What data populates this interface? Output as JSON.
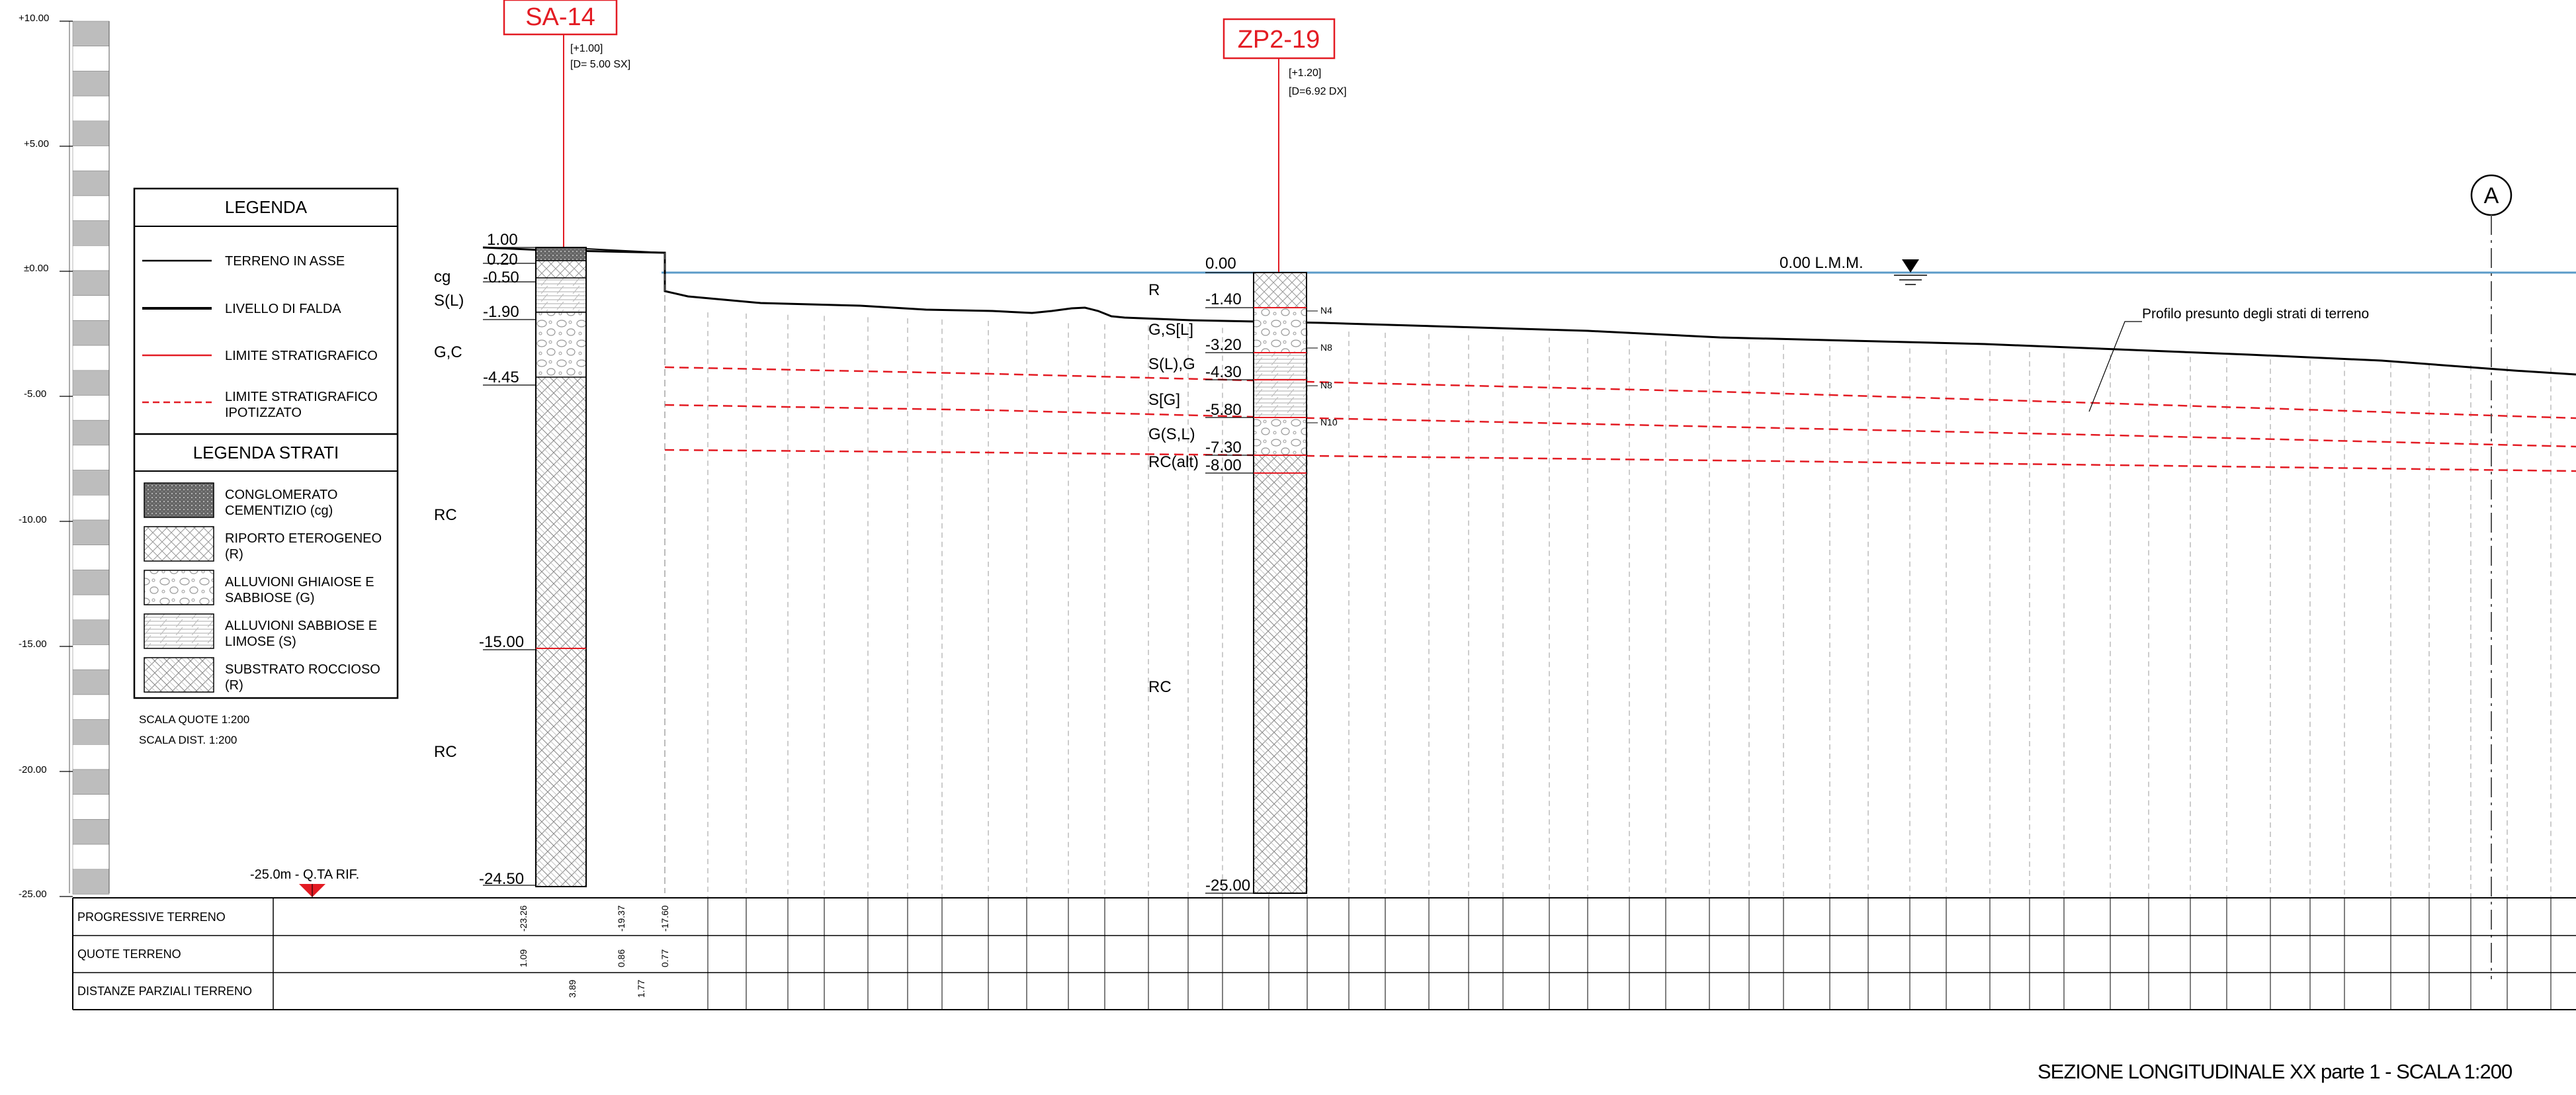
{
  "scale_ruler": {
    "labels": [
      "+10.00",
      "+5.00",
      "±0.00",
      "-5.00",
      "-10.00",
      "-15.00",
      "-20.00",
      "-25.00"
    ]
  },
  "legend": {
    "title": "LEGENDA",
    "items": [
      {
        "label": "TERRENO IN ASSE"
      },
      {
        "label": "LIVELLO DI FALDA"
      },
      {
        "label": "LIMITE STRATIGRAFICO"
      },
      {
        "label": "LIMITE STRATIGRAFICO",
        "label2": "IPOTIZZATO"
      }
    ],
    "strata_title": "LEGENDA STRATI",
    "strata": [
      {
        "label": "CONGLOMERATO",
        "label2": "CEMENTIZIO (cg)"
      },
      {
        "label": "RIPORTO ETEROGENEO",
        "label2": "(R)"
      },
      {
        "label": "ALLUVIONI GHIAIOSE E",
        "label2": "SABBIOSE (G)"
      },
      {
        "label": "ALLUVIONI SABBIOSE E",
        "label2": "LIMOSE (S)"
      },
      {
        "label": "SUBSTRATO ROCCIOSO",
        "label2": "(R)"
      }
    ],
    "scale_quote": "SCALA QUOTE 1:200",
    "scale_dist": "SCALA DIST. 1:200"
  },
  "reference": {
    "label": "-25.0m - Q.TA RIF."
  },
  "boreholes": [
    {
      "name": "SA-14",
      "note1": "[+1.00]",
      "note2": "[D= 5.00 SX]",
      "levels": [
        "1.00",
        "0.20",
        "-0.50",
        "-1.90",
        "-4.45",
        "-15.00",
        "-24.50"
      ],
      "strata_labels": [
        "cg",
        "S(L)",
        "G,C",
        "RC",
        "RC"
      ]
    },
    {
      "name": "ZP2-19",
      "note1": "[+1.20]",
      "note2": "[D=6.92 DX]",
      "levels": [
        "0.00",
        "-1.40",
        "-3.20",
        "-4.30",
        "-5.80",
        "-7.30",
        "-8.00",
        "-25.00"
      ],
      "strata_labels": [
        "R",
        "G,S[L]",
        "S(L),G",
        "S[G]",
        "G(S,L)",
        "RC(alt)",
        "RC"
      ],
      "spt": [
        "N4",
        "N8",
        "N8",
        "N10"
      ]
    }
  ],
  "water": {
    "label": "0.00 L.M.M."
  },
  "section_marker": "A",
  "profile_note": "Profilo presunto degli strati di terreno",
  "table": {
    "rows": [
      "PROGRESSIVE TERRENO",
      "QUOTE TERRENO",
      "DISTANZE PARZIALI TERRENO"
    ],
    "sa14": {
      "prog": "-23.26",
      "quote": "1.09",
      "dist": "3.89"
    },
    "c2": {
      "prog": "-19.37",
      "quote": "0.86",
      "dist": "1.77"
    },
    "c3": {
      "prog": "-17.60",
      "quote": "0.77"
    }
  },
  "footer": {
    "title": "SEZIONE LONGITUDINALE XX parte 1 - SCALA 1:200"
  }
}
